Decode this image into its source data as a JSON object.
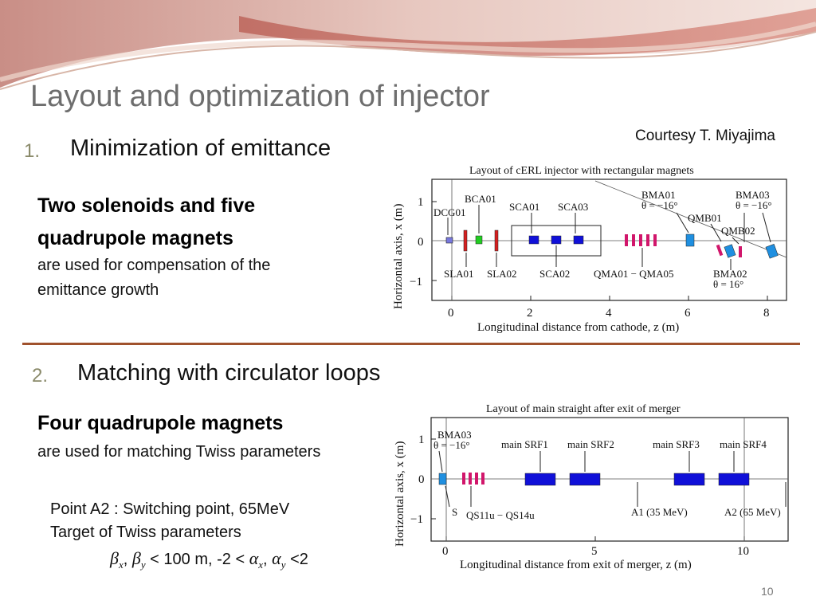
{
  "slide": {
    "title": "Layout and optimization of injector",
    "page_number": "10",
    "courtesy": "Courtesy T. Miyajima"
  },
  "section1": {
    "number": "1.",
    "heading": "Minimization of emittance",
    "bold_line1": "Two solenoids and five",
    "bold_line2": "quadrupole magnets",
    "text_line1": "are used for compensation of the",
    "text_line2": "emittance growth"
  },
  "section2": {
    "number": "2.",
    "heading": "Matching with circulator loops",
    "bold_line1": "Four quadrupole magnets",
    "text_line1": "are used for matching Twiss parameters",
    "point_line1": "Point A2 : Switching point, 65MeV",
    "point_line2": "Target of Twiss parameters",
    "twiss": {
      "beta": "β",
      "alpha": "α",
      "sub_x": "x",
      "sub_y": "y",
      "comma": ",",
      "lt100": " < 100 m,  -2 < ",
      "lt2": " <2"
    }
  },
  "figure1": {
    "title": "Layout of cERL injector with rectangular magnets",
    "xlabel": "Longitudinal distance from cathode, z (m)",
    "ylabel": "Horizontal axis, x (m)",
    "xticks": [
      "0",
      "2",
      "4",
      "6",
      "8"
    ],
    "yticks": [
      "1",
      "0",
      "−1"
    ],
    "labels": {
      "dcg01": "DCG01",
      "bca01": "BCA01",
      "sca01": "SCA01",
      "sca03": "SCA03",
      "bma01": "BMA01",
      "bma01_theta": "θ = −16°",
      "bma03": "BMA03",
      "bma03_theta": "θ = −16°",
      "qmb01": "QMB01",
      "qmb02": "QMB02",
      "sla01": "SLA01",
      "sla02": "SLA02",
      "sca02": "SCA02",
      "qma": "QMA01 − QMA05",
      "bma02": "BMA02",
      "bma02_theta": "θ = 16°"
    }
  },
  "figure2": {
    "title": "Layout of main straight after exit of merger",
    "xlabel": "Longitudinal distance from exit of merger, z (m)",
    "ylabel": "Horizontal axis, x (m)",
    "xticks": [
      "0",
      "5",
      "10"
    ],
    "yticks": [
      "1",
      "0",
      "−1"
    ],
    "labels": {
      "bma03": "BMA03",
      "bma03_theta": "θ = −16°",
      "srf1": "main SRF1",
      "srf2": "main SRF2",
      "srf3": "main SRF3",
      "srf4": "main SRF4",
      "s": "S",
      "qs": "QS11u − QS14u",
      "a1": "A1 (35 MeV)",
      "a2": "A2 (65 MeV)"
    }
  },
  "colors": {
    "title": "#6e6e6e",
    "separator": "#a0522d",
    "solenoid_red": "#d62020",
    "quad_magenta": "#d1166b",
    "cavity_blue": "#1010d8",
    "bend_blue": "#1f8fe0",
    "buncher_green": "#22cc22"
  }
}
